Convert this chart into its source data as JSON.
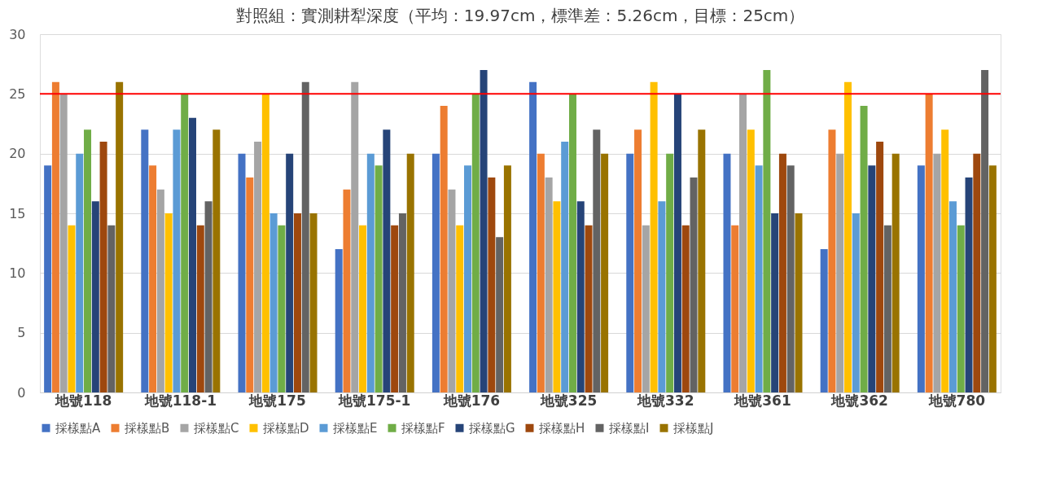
{
  "chart_data": {
    "type": "bar",
    "title": "對照組：實測耕犁深度（平均：19.97cm，標準差：5.26cm，目標：25cm）",
    "categories": [
      "地號118",
      "地號118-1",
      "地號175",
      "地號175-1",
      "地號176",
      "地號325",
      "地號332",
      "地號361",
      "地號362",
      "地號780"
    ],
    "series": [
      {
        "name": "採樣點A",
        "color": "#4472c4",
        "values": [
          19,
          22,
          20,
          12,
          20,
          26,
          20,
          20,
          12,
          19
        ]
      },
      {
        "name": "採樣點B",
        "color": "#ed7d31",
        "values": [
          26,
          19,
          18,
          17,
          24,
          20,
          22,
          14,
          22,
          25
        ]
      },
      {
        "name": "採樣點C",
        "color": "#a5a5a5",
        "values": [
          25,
          17,
          21,
          26,
          17,
          18,
          14,
          25,
          20,
          20
        ]
      },
      {
        "name": "採樣點D",
        "color": "#ffc000",
        "values": [
          14,
          15,
          25,
          14,
          14,
          16,
          26,
          22,
          26,
          22
        ]
      },
      {
        "name": "採樣點E",
        "color": "#5b9bd5",
        "values": [
          20,
          22,
          15,
          20,
          19,
          21,
          16,
          19,
          15,
          16
        ]
      },
      {
        "name": "採樣點F",
        "color": "#70ad47",
        "values": [
          22,
          25,
          14,
          19,
          25,
          25,
          20,
          27,
          24,
          14
        ]
      },
      {
        "name": "採樣點G",
        "color": "#264478",
        "values": [
          16,
          23,
          20,
          22,
          27,
          16,
          25,
          15,
          19,
          18
        ]
      },
      {
        "name": "採樣點H",
        "color": "#9e480e",
        "values": [
          21,
          14,
          15,
          14,
          18,
          14,
          14,
          20,
          21,
          20
        ]
      },
      {
        "name": "採樣點I",
        "color": "#636363",
        "values": [
          14,
          16,
          26,
          15,
          13,
          22,
          18,
          19,
          14,
          27
        ]
      },
      {
        "name": "採樣點J",
        "color": "#997300",
        "values": [
          26,
          22,
          15,
          20,
          19,
          20,
          22,
          15,
          20,
          19
        ]
      }
    ],
    "ylim": [
      0,
      30
    ],
    "yticks": [
      0,
      5,
      10,
      15,
      20,
      25,
      30
    ],
    "grid": "y",
    "legend": "bottom",
    "ref_lines": [
      {
        "axis": "y",
        "value": 25,
        "color": "#ff0000"
      }
    ]
  }
}
